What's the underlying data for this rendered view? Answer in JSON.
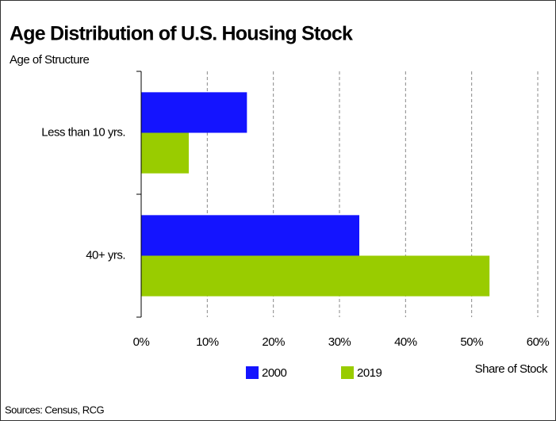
{
  "chart_data": {
    "type": "bar",
    "orientation": "horizontal",
    "title": "Age Distribution of U.S. Housing Stock",
    "y_axis_label": "Age of Structure",
    "x_axis_label": "Share of Stock",
    "source": "Sources: Census, RCG",
    "categories": [
      "Less than 10 yrs.",
      "40+ yrs."
    ],
    "series": [
      {
        "name": "2000",
        "color": "#1414ff",
        "values": [
          16,
          33
        ]
      },
      {
        "name": "2019",
        "color": "#99cc00",
        "values": [
          7.2,
          52.7
        ]
      }
    ],
    "xlim": [
      0,
      60
    ],
    "xticks": [
      {
        "value": 0,
        "label": "0%"
      },
      {
        "value": 10,
        "label": "10%"
      },
      {
        "value": 20,
        "label": "20%"
      },
      {
        "value": 30,
        "label": "30%"
      },
      {
        "value": 40,
        "label": "40%"
      },
      {
        "value": 50,
        "label": "50%"
      },
      {
        "value": 60,
        "label": "60%"
      }
    ],
    "grid": true,
    "legend": "bottom"
  }
}
